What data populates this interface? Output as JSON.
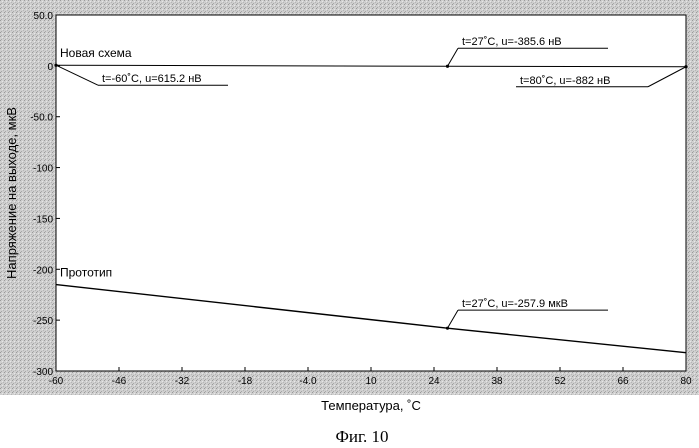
{
  "chart_data": {
    "type": "line",
    "xlabel": "Температура, ˚С",
    "ylabel": "Напряжение на выходе, мкВ",
    "xlim": [
      -60,
      80
    ],
    "ylim": [
      -300,
      50
    ],
    "x_ticks": [
      -60,
      -46,
      -32,
      -18,
      -4,
      10,
      24,
      38,
      52,
      66,
      80
    ],
    "x_tick_labels": [
      "-60",
      "-46",
      "-32",
      "-18",
      "-4.0",
      "10",
      "24",
      "38",
      "52",
      "66",
      "80"
    ],
    "y_ticks": [
      50,
      0,
      -50,
      -100,
      -150,
      -200,
      -250,
      -300
    ],
    "y_tick_labels": [
      "50.0",
      "0",
      "-50.0",
      "-100",
      "-150",
      "-200",
      "-250",
      "-300"
    ],
    "grid": false,
    "series": [
      {
        "name": "Новая схема",
        "x": [
          -60,
          27,
          80
        ],
        "values": [
          0.6152,
          -0.3856,
          -0.882
        ]
      },
      {
        "name": "Прототип",
        "x": [
          -60,
          27,
          80
        ],
        "values": [
          -215,
          -257.9,
          -282
        ]
      }
    ],
    "annotations": [
      {
        "text": "t=-60˚C, u=615.2 нВ",
        "x": -60,
        "y": 0.6152
      },
      {
        "text": "t=27˚C, u=-385.6 нВ",
        "x": 27,
        "y": -0.3856
      },
      {
        "text": "t=80˚C, u=-882 нВ",
        "x": 80,
        "y": -0.882
      },
      {
        "text": "t=27˚C, u=-257.9 мкВ",
        "x": 27,
        "y": -257.9
      }
    ]
  },
  "caption": "Фиг. 10"
}
